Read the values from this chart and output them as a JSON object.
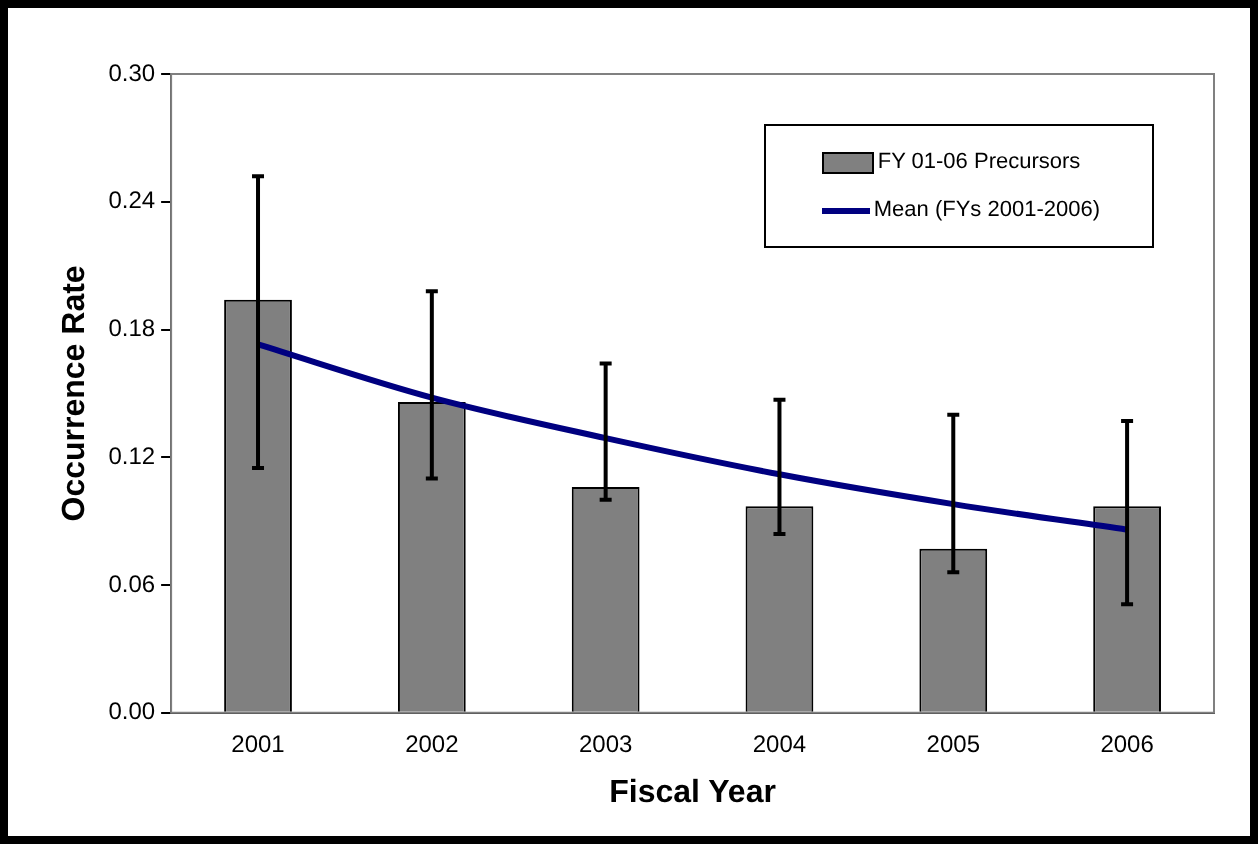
{
  "chart_data": {
    "type": "bar",
    "xlabel": "Fiscal Year",
    "ylabel": "Occurrence Rate",
    "categories": [
      "2001",
      "2002",
      "2003",
      "2004",
      "2005",
      "2006"
    ],
    "series": [
      {
        "name": "FY 01-06 Precursors",
        "color": "#808080",
        "values": [
          0.194,
          0.146,
          0.106,
          0.097,
          0.077,
          0.097
        ],
        "errors": [
          [
            0.115,
            0.252
          ],
          [
            0.11,
            0.198
          ],
          [
            0.1,
            0.164
          ],
          [
            0.084,
            0.147
          ],
          [
            0.066,
            0.14
          ],
          [
            0.051,
            0.137
          ]
        ]
      },
      {
        "name": "Mean (FYs 2001-2006)",
        "type": "line",
        "color": "#000080",
        "marker": "none",
        "line_style": "solid",
        "values": [
          0.173,
          0.148,
          0.129,
          0.112,
          0.098,
          0.086
        ]
      }
    ],
    "ylim": [
      0,
      0.3
    ],
    "yticks": [
      {
        "value": 0,
        "label": "0.00"
      },
      {
        "value": 0.06,
        "label": "0.06"
      },
      {
        "value": 0.12,
        "label": "0.12"
      },
      {
        "value": 0.18,
        "label": "0.18"
      },
      {
        "value": 0.24,
        "label": "0.24"
      },
      {
        "value": 0.3,
        "label": "0.30"
      }
    ],
    "grid": false,
    "legend": "top right"
  }
}
